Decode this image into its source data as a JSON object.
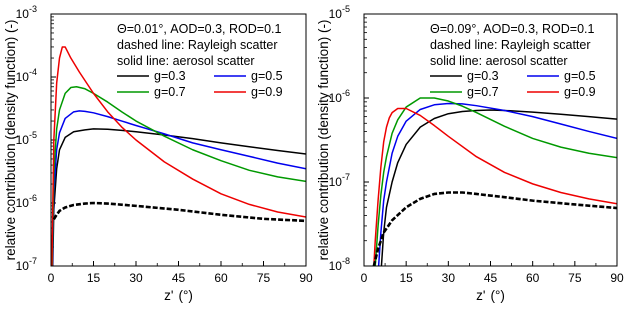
{
  "shared": {
    "ylabel": "relative contribution (density function) (-)",
    "xlabel_main": "z'",
    "xlabel_unit": "(°)",
    "xticks": [
      0,
      15,
      30,
      45,
      60,
      75,
      90
    ],
    "legend_dashed": "dashed line: Rayleigh scatter",
    "legend_solid": "solid line: aerosol scatter"
  },
  "colors": {
    "g03": "#000000",
    "g05": "#0000ee",
    "g07": "#009900",
    "g09": "#ee0000"
  },
  "chart_data": [
    {
      "type": "line",
      "title": "Θ=0.01°, AOD=0.3, ROD=0.1",
      "xlabel": "z' (°)",
      "ylabel": "relative contribution (density function) (-)",
      "xlim": [
        0,
        90
      ],
      "ylim": [
        1e-07,
        0.001
      ],
      "yscale": "log",
      "ytick_exponents": [
        -7,
        -6,
        -5,
        -4,
        -3
      ],
      "legend_placement": "top-right",
      "series": [
        {
          "name": "g=0.3",
          "color_key": "g03",
          "style": "solid",
          "x": [
            0.6,
            1,
            2,
            3,
            5,
            8,
            12,
            15,
            20,
            25,
            30,
            40,
            50,
            60,
            70,
            80,
            90
          ],
          "y": [
            1e-07,
            8e-07,
            3.5e-06,
            7e-06,
            1.1e-05,
            1.35e-05,
            1.45e-05,
            1.5e-05,
            1.48e-05,
            1.42e-05,
            1.35e-05,
            1.2e-05,
            1.05e-05,
            9e-06,
            7.8e-06,
            6.8e-06,
            6e-06
          ]
        },
        {
          "name": "g=0.5",
          "color_key": "g05",
          "style": "solid",
          "x": [
            0.5,
            1,
            2,
            3,
            5,
            8,
            10,
            12,
            15,
            20,
            25,
            30,
            40,
            50,
            60,
            70,
            80,
            90
          ],
          "y": [
            1e-07,
            1.5e-06,
            7e-06,
            1.3e-05,
            2.2e-05,
            2.8e-05,
            2.9e-05,
            2.85e-05,
            2.7e-05,
            2.35e-05,
            2e-05,
            1.7e-05,
            1.25e-05,
            9e-06,
            7e-06,
            5.5e-06,
            4.3e-06,
            3.5e-06
          ]
        },
        {
          "name": "g=0.7",
          "color_key": "g07",
          "style": "solid",
          "x": [
            0.4,
            1,
            2,
            3,
            5,
            7,
            9,
            12,
            15,
            20,
            25,
            30,
            40,
            50,
            60,
            70,
            80,
            90
          ],
          "y": [
            1e-07,
            3e-06,
            1.5e-05,
            3e-05,
            5.5e-05,
            6.8e-05,
            7e-05,
            6.5e-05,
            5.5e-05,
            4e-05,
            2.8e-05,
            2e-05,
            1.15e-05,
            7e-06,
            4.7e-06,
            3.3e-06,
            2.6e-06,
            2.2e-06
          ]
        },
        {
          "name": "g=0.9",
          "color_key": "g09",
          "style": "solid",
          "x": [
            0.3,
            1,
            2,
            3,
            4,
            5,
            7,
            10,
            15,
            20,
            25,
            30,
            40,
            50,
            60,
            70,
            80,
            90
          ],
          "y": [
            1e-07,
            1e-05,
            8e-05,
            0.0002,
            0.0003,
            0.0003,
            0.0002,
            0.00012,
            5.5e-05,
            2.8e-05,
            1.6e-05,
            1e-05,
            4.5e-06,
            2.4e-06,
            1.4e-06,
            9.5e-07,
            7.2e-07,
            6e-07
          ]
        },
        {
          "name": "Rayleigh",
          "color_key": "g03",
          "style": "dashed",
          "x": [
            1,
            2,
            3,
            5,
            8,
            12,
            15,
            20,
            30,
            45,
            60,
            75,
            90
          ],
          "y": [
            5.5e-07,
            6.5e-07,
            7.5e-07,
            8.5e-07,
            9.3e-07,
            9.8e-07,
            1e-06,
            9.8e-07,
            9e-07,
            7.8e-07,
            6.5e-07,
            5.6e-07,
            5.2e-07
          ]
        }
      ]
    },
    {
      "type": "line",
      "title": "Θ=0.09°, AOD=0.3, ROD=0.1",
      "xlabel": "z' (°)",
      "ylabel": "relative contribution (density function) (-)",
      "xlim": [
        0,
        90
      ],
      "ylim": [
        1e-08,
        1e-05
      ],
      "yscale": "log",
      "ytick_exponents": [
        -8,
        -7,
        -6,
        -5
      ],
      "legend_placement": "top-right",
      "series": [
        {
          "name": "g=0.3",
          "color_key": "g03",
          "style": "solid",
          "x": [
            6.2,
            7,
            8,
            10,
            12,
            15,
            20,
            25,
            30,
            35,
            40,
            45,
            50,
            60,
            70,
            80,
            90
          ],
          "y": [
            1e-08,
            2.5e-08,
            5e-08,
            1e-07,
            1.7e-07,
            2.8e-07,
            4.5e-07,
            5.7e-07,
            6.5e-07,
            6.9e-07,
            7.1e-07,
            7.2e-07,
            7.1e-07,
            6.8e-07,
            6.4e-07,
            6e-07,
            5.6e-07
          ]
        },
        {
          "name": "g=0.5",
          "color_key": "g05",
          "style": "solid",
          "x": [
            5.2,
            6,
            7,
            8,
            10,
            12,
            15,
            20,
            25,
            30,
            35,
            40,
            50,
            60,
            70,
            80,
            90
          ],
          "y": [
            1e-08,
            2.5e-08,
            6e-08,
            1e-07,
            2.2e-07,
            3.5e-07,
            5.3e-07,
            7.3e-07,
            8.3e-07,
            8.6e-07,
            8.5e-07,
            8.1e-07,
            7.1e-07,
            6e-07,
            4.9e-07,
            4e-07,
            3.3e-07
          ]
        },
        {
          "name": "g=0.7",
          "color_key": "g07",
          "style": "solid",
          "x": [
            4,
            5,
            6,
            7,
            8,
            10,
            12,
            15,
            20,
            25,
            30,
            35,
            40,
            50,
            60,
            70,
            80,
            90
          ],
          "y": [
            1e-08,
            3e-08,
            7e-08,
            1.3e-07,
            2e-07,
            3.8e-07,
            5.5e-07,
            7.8e-07,
            1e-06,
            1e-06,
            9.2e-07,
            8e-07,
            6.7e-07,
            4.6e-07,
            3.3e-07,
            2.6e-07,
            2.2e-07,
            1.95e-07
          ]
        },
        {
          "name": "g=0.9",
          "color_key": "g09",
          "style": "solid",
          "x": [
            3.5,
            4,
            5,
            6,
            7,
            8,
            9,
            10,
            12,
            15,
            20,
            25,
            30,
            40,
            50,
            60,
            70,
            80,
            90
          ],
          "y": [
            1e-08,
            2e-08,
            6e-08,
            1.5e-07,
            3e-07,
            4.5e-07,
            5.8e-07,
            6.7e-07,
            7.5e-07,
            7.5e-07,
            6.2e-07,
            4.7e-07,
            3.5e-07,
            2e-07,
            1.3e-07,
            9.5e-08,
            7.5e-08,
            6.3e-08,
            5.5e-08
          ]
        },
        {
          "name": "Rayleigh",
          "color_key": "g03",
          "style": "dashed",
          "x": [
            3.5,
            5,
            7,
            10,
            15,
            20,
            25,
            30,
            35,
            40,
            50,
            60,
            75,
            90
          ],
          "y": [
            1e-08,
            1.6e-08,
            2.5e-08,
            3.5e-08,
            5e-08,
            6.3e-08,
            7.2e-08,
            7.5e-08,
            7.5e-08,
            7.2e-08,
            6.6e-08,
            6e-08,
            5.4e-08,
            4.9e-08
          ]
        }
      ]
    }
  ]
}
